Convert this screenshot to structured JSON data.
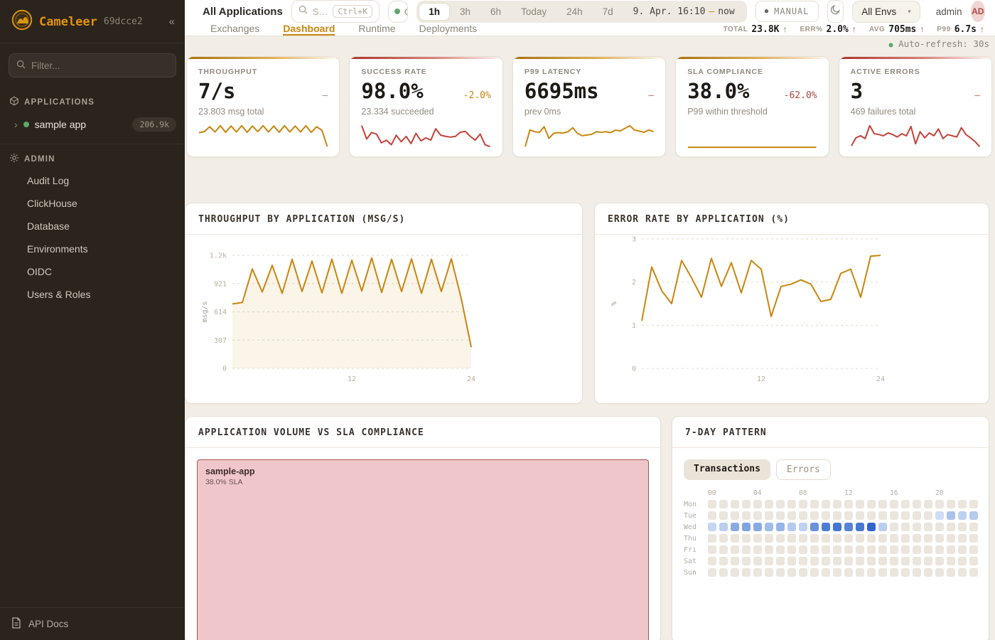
{
  "colors": {
    "brand_amber": "#c8860f",
    "red": "#c2423a",
    "green": "#4e9257",
    "sidebar_bg": "#2b241d",
    "main_bg": "#f2eee7",
    "heat_base": "#eae5dd",
    "heat_blue": "#2f66ce"
  },
  "sidebar": {
    "logo_text": "Cameleer",
    "version": "69dcce2",
    "collapse_icon": "«",
    "filter_placeholder": "Filter...",
    "applications_header": "APPLICATIONS",
    "app_item": {
      "chevron": "›",
      "name": "sample app",
      "badge": "206.9k"
    },
    "admin_header": "ADMIN",
    "admin_items": [
      "Audit Log",
      "ClickHouse",
      "Database",
      "Environments",
      "OIDC",
      "Users & Roles"
    ],
    "api_docs_label": "API Docs"
  },
  "topbar": {
    "title": "All Applications",
    "search_placeholder": "S…",
    "search_kbd": "Ctrl+K",
    "status_pill_text": "O",
    "ranges": [
      "1h",
      "3h",
      "6h",
      "Today",
      "24h",
      "7d"
    ],
    "active_range": "1h",
    "date_from": "9. Apr. 16:10",
    "date_sep": "—",
    "date_to": "now",
    "manual_label": "MANUAL",
    "env_selected": "All Envs",
    "user_name": "admin",
    "avatar_initials": "AD"
  },
  "tabs": {
    "items": [
      "Exchanges",
      "Dashboard",
      "Runtime",
      "Deployments"
    ],
    "active": "Dashboard"
  },
  "topstats": [
    {
      "label": "TOTAL",
      "value": "23.8K",
      "arrow": "↑",
      "color": "green"
    },
    {
      "label": "ERR%",
      "value": "2.0%",
      "arrow": "↑",
      "color": "red"
    },
    {
      "label": "AVG",
      "value": "705ms",
      "arrow": "↑",
      "color": "red"
    },
    {
      "label": "P99",
      "value": "6.7s",
      "arrow": "↑",
      "color": "red"
    }
  ],
  "auto_refresh": {
    "dot": "●",
    "text": "Auto-refresh: 30s"
  },
  "kpis": [
    {
      "label": "THROUGHPUT",
      "value": "7/s",
      "delta": "–",
      "delta_color": "#9a9183",
      "sub": "23.803 msg total",
      "accent": "amber",
      "spark_color": "#c8860f",
      "spark": [
        55,
        58,
        72,
        57,
        75,
        56,
        74,
        57,
        75,
        56,
        74,
        58,
        75,
        57,
        74,
        56,
        75,
        57,
        74,
        57,
        75,
        56,
        72,
        62,
        15
      ]
    },
    {
      "label": "SUCCESS RATE",
      "value": "98.0%",
      "delta": "-2.0%",
      "delta_color": "#c8860f",
      "sub": "23.334 succeeded",
      "accent": "red",
      "spark_color": "#c2423a",
      "spark": [
        80,
        45,
        62,
        58,
        35,
        42,
        30,
        55,
        38,
        52,
        33,
        60,
        40,
        48,
        42,
        72,
        55,
        52,
        50,
        52,
        63,
        65,
        52,
        42,
        58,
        30,
        25
      ]
    },
    {
      "label": "P99 LATENCY",
      "value": "6695ms",
      "delta": "–",
      "delta_color": "#cf6a60",
      "sub": "prev 0ms",
      "accent": "amber",
      "spark_color": "#c8860f",
      "spark": [
        5,
        55,
        50,
        48,
        65,
        30,
        45,
        47,
        46,
        50,
        62,
        45,
        38,
        40,
        42,
        50,
        48,
        50,
        47,
        55,
        52,
        60,
        68,
        55,
        52,
        48,
        55,
        50
      ]
    },
    {
      "label": "SLA COMPLIANCE",
      "value": "38.0%",
      "delta": "-62.0%",
      "delta_color": "#b3443c",
      "sub": "P99 within threshold",
      "accent": "amber",
      "spark_color": "#c8860f",
      "spark": [
        38,
        38,
        38,
        38,
        38,
        38,
        38,
        38,
        38,
        38,
        38,
        38,
        38,
        38,
        38,
        38,
        38,
        38,
        38,
        38
      ]
    },
    {
      "label": "ACTIVE ERRORS",
      "value": "3",
      "delta": "–",
      "delta_color": "#cf6a60",
      "sub": "469 failures total",
      "accent": "red",
      "spark_color": "#c2423a",
      "spark": [
        20,
        40,
        45,
        38,
        70,
        50,
        48,
        45,
        52,
        48,
        42,
        50,
        45,
        68,
        25,
        55,
        40,
        52,
        45,
        62,
        38,
        48,
        45,
        42,
        65,
        48,
        40,
        30,
        18
      ]
    }
  ],
  "charts": [
    {
      "type": "line",
      "title": "THROUGHPUT BY APPLICATION (MSG/S)",
      "ylabel": "msg/s",
      "ymax": 1228,
      "fill": true,
      "yticks": [
        {
          "v": 1228,
          "label": "1.2k"
        },
        {
          "v": 921,
          "label": "921"
        },
        {
          "v": 614,
          "label": "614"
        },
        {
          "v": 307,
          "label": "307"
        },
        {
          "v": 0,
          "label": "0"
        }
      ],
      "xticks": [
        {
          "i": 12,
          "label": "12"
        },
        {
          "i": 24,
          "label": "24"
        }
      ],
      "values": [
        700,
        715,
        1080,
        830,
        1120,
        815,
        1185,
        835,
        1165,
        820,
        1185,
        815,
        1175,
        840,
        1200,
        825,
        1185,
        835,
        1190,
        815,
        1185,
        835,
        1190,
        760,
        230
      ]
    },
    {
      "type": "line",
      "title": "ERROR RATE BY APPLICATION (%)",
      "ylabel": "%",
      "ymax": 3,
      "fill": false,
      "yticks": [
        {
          "v": 3,
          "label": "3"
        },
        {
          "v": 2,
          "label": "2"
        },
        {
          "v": 1,
          "label": "1"
        },
        {
          "v": 0,
          "label": "0"
        }
      ],
      "xticks": [
        {
          "i": 12,
          "label": "12"
        },
        {
          "i": 24,
          "label": "24"
        }
      ],
      "values": [
        1.1,
        2.35,
        1.8,
        1.5,
        2.5,
        2.1,
        1.65,
        2.55,
        1.9,
        2.45,
        1.75,
        2.5,
        2.3,
        1.2,
        1.9,
        1.95,
        2.05,
        1.95,
        1.55,
        1.6,
        2.2,
        2.3,
        1.65,
        2.6,
        2.62
      ]
    }
  ],
  "volume_card": {
    "title": "APPLICATION VOLUME VS SLA COMPLIANCE",
    "tile": {
      "name": "sample-app",
      "sla": "38.0% SLA"
    }
  },
  "pattern_card": {
    "title": "7-DAY PATTERN",
    "toggles": [
      "Transactions",
      "Errors"
    ],
    "active_toggle": "Transactions",
    "hour_labels": [
      "00",
      "04",
      "08",
      "12",
      "16",
      "20"
    ],
    "days": [
      "Mon",
      "Tue",
      "Wed",
      "Thu",
      "Fri",
      "Sat",
      "Sun"
    ],
    "cells": [
      [
        0,
        0,
        0,
        0,
        0,
        0,
        0,
        0,
        0,
        0,
        0,
        0,
        0,
        0,
        0,
        0,
        0,
        0,
        0,
        0,
        0,
        0,
        0,
        0
      ],
      [
        0,
        0,
        0,
        0,
        0,
        0,
        0,
        0,
        0,
        0,
        0,
        0,
        0,
        0,
        0,
        0,
        0,
        0,
        0,
        0,
        0.2,
        0.38,
        0.28,
        0.33
      ],
      [
        0.25,
        0.3,
        0.55,
        0.6,
        0.55,
        0.42,
        0.48,
        0.33,
        0.28,
        0.72,
        0.85,
        0.9,
        0.8,
        0.88,
        1.0,
        0.3,
        0,
        0,
        0,
        0,
        0,
        0,
        0,
        0
      ],
      [
        0,
        0,
        0,
        0,
        0,
        0,
        0,
        0,
        0,
        0,
        0,
        0,
        0,
        0,
        0,
        0,
        0,
        0,
        0,
        0,
        0,
        0,
        0,
        0
      ],
      [
        0,
        0,
        0,
        0,
        0,
        0,
        0,
        0,
        0,
        0,
        0,
        0,
        0,
        0,
        0,
        0,
        0,
        0,
        0,
        0,
        0,
        0,
        0,
        0
      ],
      [
        0,
        0,
        0,
        0,
        0,
        0,
        0,
        0,
        0,
        0,
        0,
        0,
        0,
        0,
        0,
        0,
        0,
        0,
        0,
        0,
        0,
        0,
        0,
        0
      ],
      [
        0,
        0,
        0,
        0,
        0,
        0,
        0,
        0,
        0,
        0,
        0,
        0,
        0,
        0,
        0,
        0,
        0,
        0,
        0,
        0,
        0,
        0,
        0,
        0
      ]
    ]
  }
}
